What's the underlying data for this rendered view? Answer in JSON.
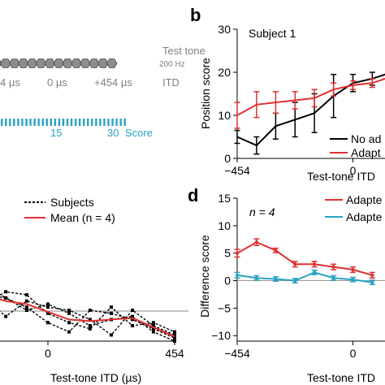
{
  "panel_a": {
    "test_tone_label": "Test tone",
    "test_tone_freq": "200 Hz",
    "itd_ticks": [
      "4 µs",
      "0 µs",
      "+454 µs"
    ],
    "itd_label": "ITD",
    "score_ticks": [
      "15",
      "30"
    ],
    "score_label": "Score",
    "colors": {
      "hexagon": "#8c8c8c",
      "score_bar": "#29a3c4",
      "text_gray": "#7f7f7f"
    }
  },
  "panel_b": {
    "letter": "b",
    "subtitle": "Subject 1",
    "legend": [
      "No ad",
      "Adapt"
    ]
  },
  "panel_c": {
    "legend": [
      "Subjects",
      "Mean (n = 4)"
    ]
  },
  "panel_d": {
    "letter": "d",
    "note": "n = 4",
    "legend": [
      "Adapte",
      "Adapte"
    ]
  },
  "chart_data": [
    {
      "type": "line",
      "panel": "b",
      "title": "Subject 1",
      "xlabel": "Test-tone ITD",
      "ylabel": "Position score",
      "xlim": [
        -454,
        454
      ],
      "ylim": [
        0,
        30
      ],
      "xticks": [
        "−454",
        "0"
      ],
      "yticks": [
        "0",
        "10",
        "20",
        "30"
      ],
      "series": [
        {
          "name": "No ad",
          "color": "#000000",
          "x": [
            -454,
            -378,
            -303,
            -227,
            -151,
            -76,
            0,
            76,
            151
          ],
          "y": [
            5,
            3,
            7.5,
            9,
            10.5,
            14.5,
            17.5,
            18.5,
            20
          ],
          "err": [
            1.5,
            2,
            3,
            4,
            4.5,
            5,
            2,
            1.5,
            1
          ]
        },
        {
          "name": "Adapt",
          "color": "#e03030",
          "x": [
            -454,
            -378,
            -303,
            -227,
            -151,
            -76,
            0,
            76,
            151
          ],
          "y": [
            10,
            12.5,
            13,
            13.5,
            14,
            16,
            17,
            17.5,
            19
          ],
          "err": [
            3,
            3,
            2.5,
            2,
            2,
            1.5,
            1,
            1,
            1
          ]
        }
      ]
    },
    {
      "type": "line",
      "panel": "c",
      "xlabel": "Test-tone ITD (µs)",
      "xlim": [
        -454,
        454
      ],
      "ylim": [
        -3,
        1
      ],
      "xticks": [
        "0",
        "454"
      ],
      "series": [
        {
          "name": "Subjects",
          "color": "#000000",
          "x": [
            -454,
            -378,
            -303,
            -227,
            -151,
            -76,
            0,
            76,
            151,
            227,
            303,
            378,
            454
          ],
          "y": [
            -0.3,
            -0.8,
            -1.3,
            -1.5,
            -1.6,
            -1.9,
            -2.4,
            -2.7,
            -2.0,
            -2.1,
            -2.3,
            -2.6,
            -2.9
          ]
        },
        {
          "name": "Subjects",
          "color": "#000000",
          "x": [
            -454,
            -378,
            -303,
            -227,
            -151,
            -76,
            0,
            76,
            151,
            227,
            303,
            378,
            454
          ],
          "y": [
            -0.9,
            -1.2,
            -0.9,
            -1.2,
            -1.6,
            -2.0,
            -1.8,
            -2.1,
            -2.5,
            -2.3,
            -2.2,
            -2.7,
            -3.0
          ]
        },
        {
          "name": "Subjects",
          "color": "#000000",
          "x": [
            -454,
            -378,
            -303,
            -227,
            -151,
            -76,
            0,
            76,
            151,
            227,
            303,
            378,
            454
          ],
          "y": [
            -0.5,
            -0.6,
            -1.5,
            -1.8,
            -1.4,
            -1.5,
            -2.1,
            -2.4,
            -2.6,
            -1.9,
            -2.5,
            -2.4,
            -2.7
          ]
        },
        {
          "name": "Subjects",
          "color": "#000000",
          "x": [
            -454,
            -378,
            -303,
            -227,
            -151,
            -76,
            0,
            76,
            151,
            227,
            303,
            378,
            454
          ],
          "y": [
            -0.6,
            -1.0,
            -0.8,
            -1.6,
            -2.2,
            -1.7,
            -1.9,
            -2.0,
            -2.3,
            -2.8,
            -2.0,
            -2.5,
            -2.8
          ]
        },
        {
          "name": "Mean (n = 4)",
          "color": "#e03030",
          "x": [
            -454,
            -378,
            -303,
            -227,
            -151,
            -76,
            0,
            76,
            151,
            227,
            303,
            378,
            454
          ],
          "y": [
            -0.6,
            -0.9,
            -1.15,
            -1.5,
            -1.7,
            -1.8,
            -2.05,
            -2.3,
            -2.35,
            -2.3,
            -2.25,
            -2.55,
            -2.85
          ]
        }
      ]
    },
    {
      "type": "line",
      "panel": "d",
      "xlabel": "Test-tone ITD",
      "ylabel": "Difference score",
      "xlim": [
        -454,
        454
      ],
      "ylim": [
        -11,
        15
      ],
      "xticks": [
        "−454",
        "0"
      ],
      "yticks": [
        "−10",
        "−5",
        "0",
        "5",
        "10",
        "15"
      ],
      "series": [
        {
          "name": "Adapte",
          "color": "#e03030",
          "x": [
            -454,
            -378,
            -303,
            -227,
            -151,
            -76,
            0,
            76
          ],
          "y": [
            5,
            7,
            5.5,
            3,
            3,
            2.5,
            2,
            1
          ],
          "err": [
            0.7,
            0.6,
            0.4,
            0.5,
            0.5,
            0.5,
            0.5,
            0.5
          ]
        },
        {
          "name": "Adapte",
          "color": "#29a3c4",
          "x": [
            -454,
            -378,
            -303,
            -227,
            -151,
            -76,
            0,
            76
          ],
          "y": [
            1,
            0.5,
            0.3,
            0,
            1.5,
            0.5,
            0.2,
            -0.3
          ],
          "err": [
            0.5,
            0.4,
            0.4,
            0.4,
            0.4,
            0.4,
            0.4,
            0.4
          ]
        }
      ]
    }
  ]
}
